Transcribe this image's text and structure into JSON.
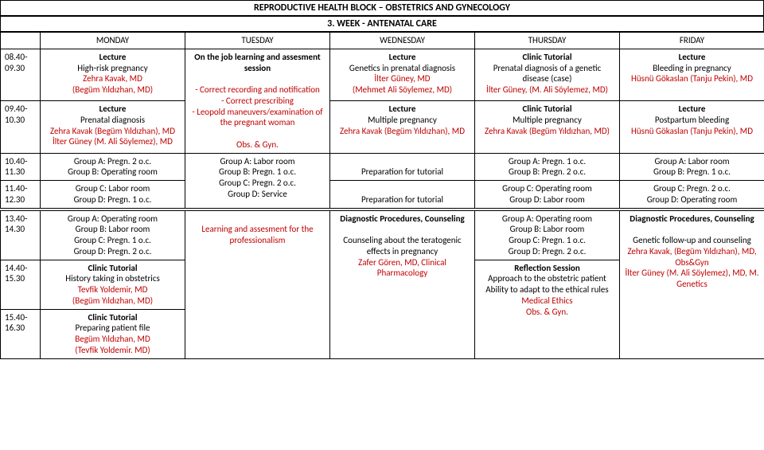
{
  "header": {
    "title1": "REPRODUCTIVE HEALTH BLOCK – OBSTETRICS AND GYNECOLOGY",
    "title2": "3. WEEK - ANTENATAL CARE"
  },
  "days": [
    "MONDAY",
    "TUESDAY",
    "WEDNESDAY",
    "THURSDAY",
    "FRIDAY"
  ],
  "times": {
    "t1": "08.40-09.30",
    "t2": "09.40-10.30",
    "t3": "10.40-11.30",
    "t4": "11.40-12.30",
    "t5": "13.40-14.30",
    "t6": "14.40-15.30",
    "t7": "15.40-16.30"
  },
  "r1": {
    "mon": [
      "Lecture",
      "High-risk pregnancy",
      "Zehra Kavak, MD",
      "(Begüm Yıldızhan, MD)"
    ],
    "mon_colors": [
      "#000",
      "#000",
      "#c00000",
      "#c00000"
    ],
    "mon_bold": [
      true,
      false,
      false,
      false
    ],
    "tue": [
      "On the job learning and assesment session",
      "",
      "- Correct recording and notification",
      "- Correct prescribing",
      "- Leopold maneuvers/examination of the pregnant woman",
      "",
      "Obs. & Gyn."
    ],
    "tue_colors": [
      "#000",
      "#000",
      "#c00000",
      "#c00000",
      "#c00000",
      "#000",
      "#c00000"
    ],
    "tue_bold": [
      true,
      false,
      false,
      false,
      false,
      false,
      false
    ],
    "wed": [
      "Lecture",
      "Genetics in prenatal diagnosis",
      "İlter Güney, MD",
      "(Mehmet Ali Söylemez, MD)"
    ],
    "wed_colors": [
      "#000",
      "#000",
      "#c00000",
      "#c00000"
    ],
    "wed_bold": [
      true,
      false,
      false,
      false
    ],
    "thu": [
      "Clinic Tutorial",
      "Prenatal diagnosis of a genetic disease (case)",
      "İlter Güney, (M. Ali Söylemez, MD)"
    ],
    "thu_colors": [
      "#000",
      "#000",
      "#c00000"
    ],
    "thu_bold": [
      true,
      false,
      false
    ],
    "fri": [
      "Lecture",
      "Bleeding in pregnancy",
      "Hüsnü Gökaslan (Tanju Pekin), MD"
    ],
    "fri_colors": [
      "#000",
      "#000",
      "#c00000"
    ],
    "fri_bold": [
      true,
      false,
      false
    ]
  },
  "r2": {
    "mon": [
      "Lecture",
      "Prenatal diagnosis",
      "Zehra Kavak (Begüm Yıldızhan), MD",
      "İlter Güney (M. Ali Söylemez), MD"
    ],
    "mon_colors": [
      "#000",
      "#000",
      "#c00000",
      "#c00000"
    ],
    "mon_bold": [
      true,
      false,
      false,
      false
    ],
    "wed": [
      "Lecture",
      "Multiple pregnancy",
      "Zehra Kavak (Begüm Yıldızhan), MD"
    ],
    "wed_colors": [
      "#000",
      "#000",
      "#c00000"
    ],
    "wed_bold": [
      true,
      false,
      false
    ],
    "thu": [
      "Clinic Tutorial",
      "Multiple pregnancy",
      "Zehra Kavak (Begüm Yıldızhan, MD)"
    ],
    "thu_colors": [
      "#000",
      "#000",
      "#c00000"
    ],
    "thu_bold": [
      true,
      false,
      false
    ],
    "fri": [
      "Lecture",
      "Postpartum bleeding",
      "Hüsnü Gökaslan (Tanju Pekin), MD"
    ],
    "fri_colors": [
      "#000",
      "#000",
      "#c00000"
    ],
    "fri_bold": [
      true,
      false,
      false
    ]
  },
  "r3": {
    "mon": [
      "Group A: Pregn. 2 o.c.",
      "Group B: Operating room"
    ],
    "wed": [
      "",
      "Preparation for tutorial"
    ],
    "thu": [
      "Group A: Pregn. 1 o.c.",
      "Group B: Pregn. 2 o.c."
    ],
    "fri": [
      "Group A: Labor room",
      "Group B: Pregn. 1 o.c."
    ]
  },
  "r4": {
    "mon": [
      "Group C: Labor room",
      "Group D: Pregn. 1 o.c."
    ],
    "tue": [
      "Group A: Labor room",
      "Group B: Pregn. 1 o.c.",
      "Group C: Pregn. 2 o.c.",
      "Group D: Service"
    ],
    "wed": [
      "",
      "Preparation for tutorial"
    ],
    "thu": [
      "Group C: Operating room",
      "Group D: Labor room"
    ],
    "fri": [
      "Group C: Pregn. 2 o.c.",
      "Group D: Operating room"
    ]
  },
  "r5": {
    "mon": [
      "Group A: Operating room",
      "Group B: Labor room",
      "Group C: Pregn. 1 o.c.",
      "Group D: Pregn. 2 o.c."
    ],
    "tue": [
      "",
      "Learning and assesment for the professionalism"
    ],
    "tue_colors": [
      "#000",
      "#c00000"
    ],
    "wed": [
      "Diagnostic Procedures, Counseling",
      "",
      "Counseling about the teratogenic effects in pregnancy",
      "Zafer Gören, MD, Clinical Pharmacology"
    ],
    "wed_colors": [
      "#000",
      "#000",
      "#000",
      "#c00000"
    ],
    "wed_bold": [
      true,
      false,
      false,
      false
    ],
    "thu": [
      "Group A: Operating room",
      "Group B: Labor room",
      "Group C: Pregn. 1 o.c.",
      "Group D: Pregn. 2 o.c."
    ],
    "fri": [
      "Diagnostic Procedures, Counseling",
      "",
      "Genetic follow-up and counseling",
      "Zehra Kavak, (Begüm Yıldızhan), MD, Obs&Gyn",
      "İlter Güney (M. Ali Söylemez), MD, M. Genetics"
    ],
    "fri_colors": [
      "#000",
      "#000",
      "#000",
      "#c00000",
      "#c00000"
    ],
    "fri_bold": [
      true,
      false,
      false,
      false,
      false
    ]
  },
  "r6": {
    "mon": [
      "Clinic Tutorial",
      "History taking in obstetrics",
      "Tevfik Yoldemir, MD",
      "(Begüm Yıldızhan, MD)"
    ],
    "mon_colors": [
      "#000",
      "#000",
      "#c00000",
      "#c00000"
    ],
    "mon_bold": [
      true,
      false,
      false,
      false
    ],
    "thu": [
      "Reflection Session",
      "Approach to the obstetric patient",
      "Ability to adapt to the ethical rules",
      "Medical Ethics",
      "Obs. & Gyn."
    ],
    "thu_colors": [
      "#000",
      "#000",
      "#000",
      "#c00000",
      "#c00000"
    ],
    "thu_bold": [
      true,
      false,
      false,
      false,
      false
    ]
  },
  "r7": {
    "mon": [
      "Clinic Tutorial",
      "Preparing patient file",
      "Begüm Yıldızhan, MD",
      "(Tevfik Yoldemir. MD)"
    ],
    "mon_colors": [
      "#000",
      "#000",
      "#c00000",
      "#c00000"
    ],
    "mon_bold": [
      true,
      false,
      false,
      false
    ]
  }
}
